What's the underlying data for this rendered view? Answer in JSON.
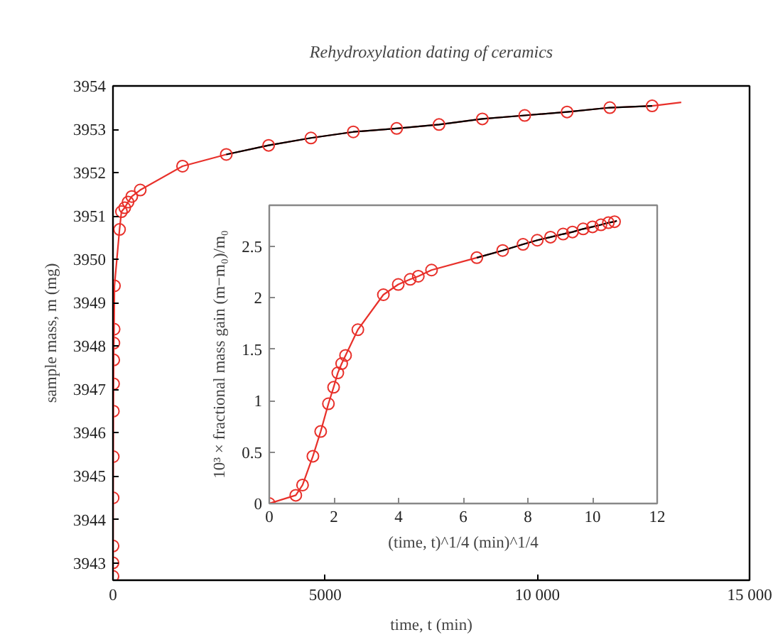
{
  "chart_data": [
    {
      "type": "scatter",
      "title": "Rehydroxylation dating of ceramics",
      "xlabel": "time, t (min)",
      "ylabel": "sample mass, m (mg)",
      "xlim": [
        0,
        15000
      ],
      "xticks": [
        0,
        5000,
        {
          "value": 10000,
          "label": "10 000"
        },
        {
          "value": 15000,
          "label": "15 000"
        }
      ],
      "ylim": [
        3942.6,
        3954
      ],
      "yticks": [
        3943,
        3944,
        3945,
        3946,
        3947,
        3948,
        3949,
        3950,
        3951,
        3952,
        3953,
        3954
      ],
      "grid": false,
      "series": [
        {
          "type": "line",
          "color": "#e8302a",
          "x": [
            0,
            2,
            4,
            7,
            10,
            14,
            18,
            22,
            27,
            35,
            155,
            200,
            277,
            355,
            443,
            643,
            1640,
            2670,
            3668,
            4665,
            5663,
            6685,
            7683,
            8704,
            9702,
            10700,
            11708,
            12705,
            13390
          ],
          "values": [
            3942.69,
            3943.39,
            3944.5,
            3945.45,
            3946.5,
            3947.13,
            3947.68,
            3948.07,
            3948.39,
            3949.39,
            3950.69,
            3951.1,
            3951.19,
            3951.32,
            3951.45,
            3951.6,
            3952.15,
            3952.42,
            3952.63,
            3952.8,
            3952.94,
            3953.02,
            3953.11,
            3953.24,
            3953.32,
            3953.4,
            3953.5,
            3953.54,
            3953.62
          ]
        },
        {
          "type": "line",
          "color": "#000000",
          "x": [
            2670,
            3668,
            4665,
            5663,
            6685,
            7683,
            8704,
            9702,
            10700,
            11708,
            12705
          ],
          "values": [
            3952.42,
            3952.63,
            3952.8,
            3952.94,
            3953.02,
            3953.11,
            3953.24,
            3953.32,
            3953.4,
            3953.5,
            3953.54
          ]
        },
        {
          "marker": "circle",
          "color": "#e8302a",
          "x": [
            0,
            1,
            2,
            4,
            7,
            10,
            14,
            18,
            22,
            27,
            35,
            155,
            200,
            277,
            355,
            443,
            643,
            1640,
            2670,
            3668,
            4665,
            5663,
            6685,
            7683,
            8704,
            9702,
            10700,
            11708,
            12705
          ],
          "values": [
            3942.69,
            3943.0,
            3943.39,
            3944.5,
            3945.45,
            3946.5,
            3947.13,
            3947.68,
            3948.07,
            3948.39,
            3949.39,
            3950.69,
            3951.1,
            3951.19,
            3951.32,
            3951.45,
            3951.6,
            3952.15,
            3952.42,
            3952.63,
            3952.8,
            3952.94,
            3953.02,
            3953.11,
            3953.24,
            3953.32,
            3953.4,
            3953.5,
            3953.54
          ]
        }
      ]
    },
    {
      "type": "scatter",
      "xlabel": "(time, t)^1/4 (min)^1/4",
      "ylabel": "10³ × fractional mass gain (m−m₀)/m₀",
      "xlim": [
        0,
        12
      ],
      "xticks": [
        0,
        2,
        4,
        6,
        8,
        10,
        12
      ],
      "ylim": [
        0,
        2.9
      ],
      "yticks": [
        0,
        0.5,
        1,
        1.5,
        2,
        2.5
      ],
      "grid": false,
      "series": [
        {
          "type": "line",
          "color": "#e8302a",
          "x": [
            0,
            0.82,
            1.03,
            1.35,
            1.59,
            1.83,
            1.99,
            2.12,
            2.24,
            2.36,
            2.74,
            3.53,
            3.99,
            4.36,
            4.61,
            5.02,
            6.42,
            7.22,
            7.85,
            8.29,
            8.7,
            9.09,
            9.38,
            9.71,
            10.0,
            10.26,
            10.49,
            10.68,
            10.75
          ],
          "values": [
            0,
            0.08,
            0.18,
            0.46,
            0.7,
            0.97,
            1.13,
            1.27,
            1.36,
            1.44,
            1.69,
            2.03,
            2.13,
            2.18,
            2.21,
            2.27,
            2.39,
            2.46,
            2.52,
            2.56,
            2.59,
            2.62,
            2.64,
            2.67,
            2.69,
            2.71,
            2.73,
            2.74,
            2.75
          ]
        },
        {
          "type": "line",
          "color": "#000000",
          "x": [
            6.42,
            7.22,
            7.85,
            8.29,
            8.7,
            9.09,
            9.38,
            9.71,
            10.0,
            10.26,
            10.49,
            10.68,
            10.75
          ],
          "values": [
            2.39,
            2.46,
            2.52,
            2.56,
            2.59,
            2.62,
            2.64,
            2.67,
            2.69,
            2.71,
            2.73,
            2.74,
            2.75
          ]
        },
        {
          "marker": "circle",
          "color": "#e8302a",
          "x": [
            0,
            0.82,
            1.03,
            1.35,
            1.59,
            1.83,
            1.99,
            2.12,
            2.24,
            2.36,
            2.74,
            3.53,
            3.99,
            4.36,
            4.61,
            5.02,
            6.42,
            7.22,
            7.85,
            8.29,
            8.7,
            9.09,
            9.38,
            9.71,
            10.0,
            10.26,
            10.49,
            10.68
          ],
          "values": [
            0,
            0.08,
            0.18,
            0.46,
            0.7,
            0.97,
            1.13,
            1.27,
            1.36,
            1.44,
            1.69,
            2.03,
            2.13,
            2.18,
            2.21,
            2.27,
            2.39,
            2.46,
            2.52,
            2.56,
            2.59,
            2.62,
            2.64,
            2.67,
            2.69,
            2.71,
            2.73,
            2.74
          ]
        }
      ]
    }
  ]
}
